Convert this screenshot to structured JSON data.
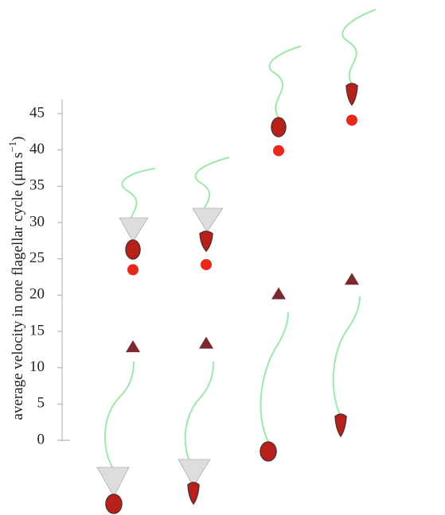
{
  "chart_data": {
    "type": "scatter",
    "ylabel": [
      "average velocity in one flagellar cycle (μm s",
      "−1",
      ")"
    ],
    "categories": [
      null,
      null,
      null,
      null
    ],
    "series": [
      {
        "color": "#e8281a",
        "marker": "circle",
        "values": [
          23.5,
          24.2,
          39.9,
          44.1
        ]
      },
      {
        "color": "#7a2a2e",
        "marker": "triangle",
        "values": [
          12.9,
          13.4,
          20.2,
          22.2
        ]
      }
    ],
    "ylim": [
      0,
      45
    ],
    "yticks": [
      0,
      5,
      10,
      15,
      20,
      25,
      30,
      35,
      40,
      45
    ]
  }
}
